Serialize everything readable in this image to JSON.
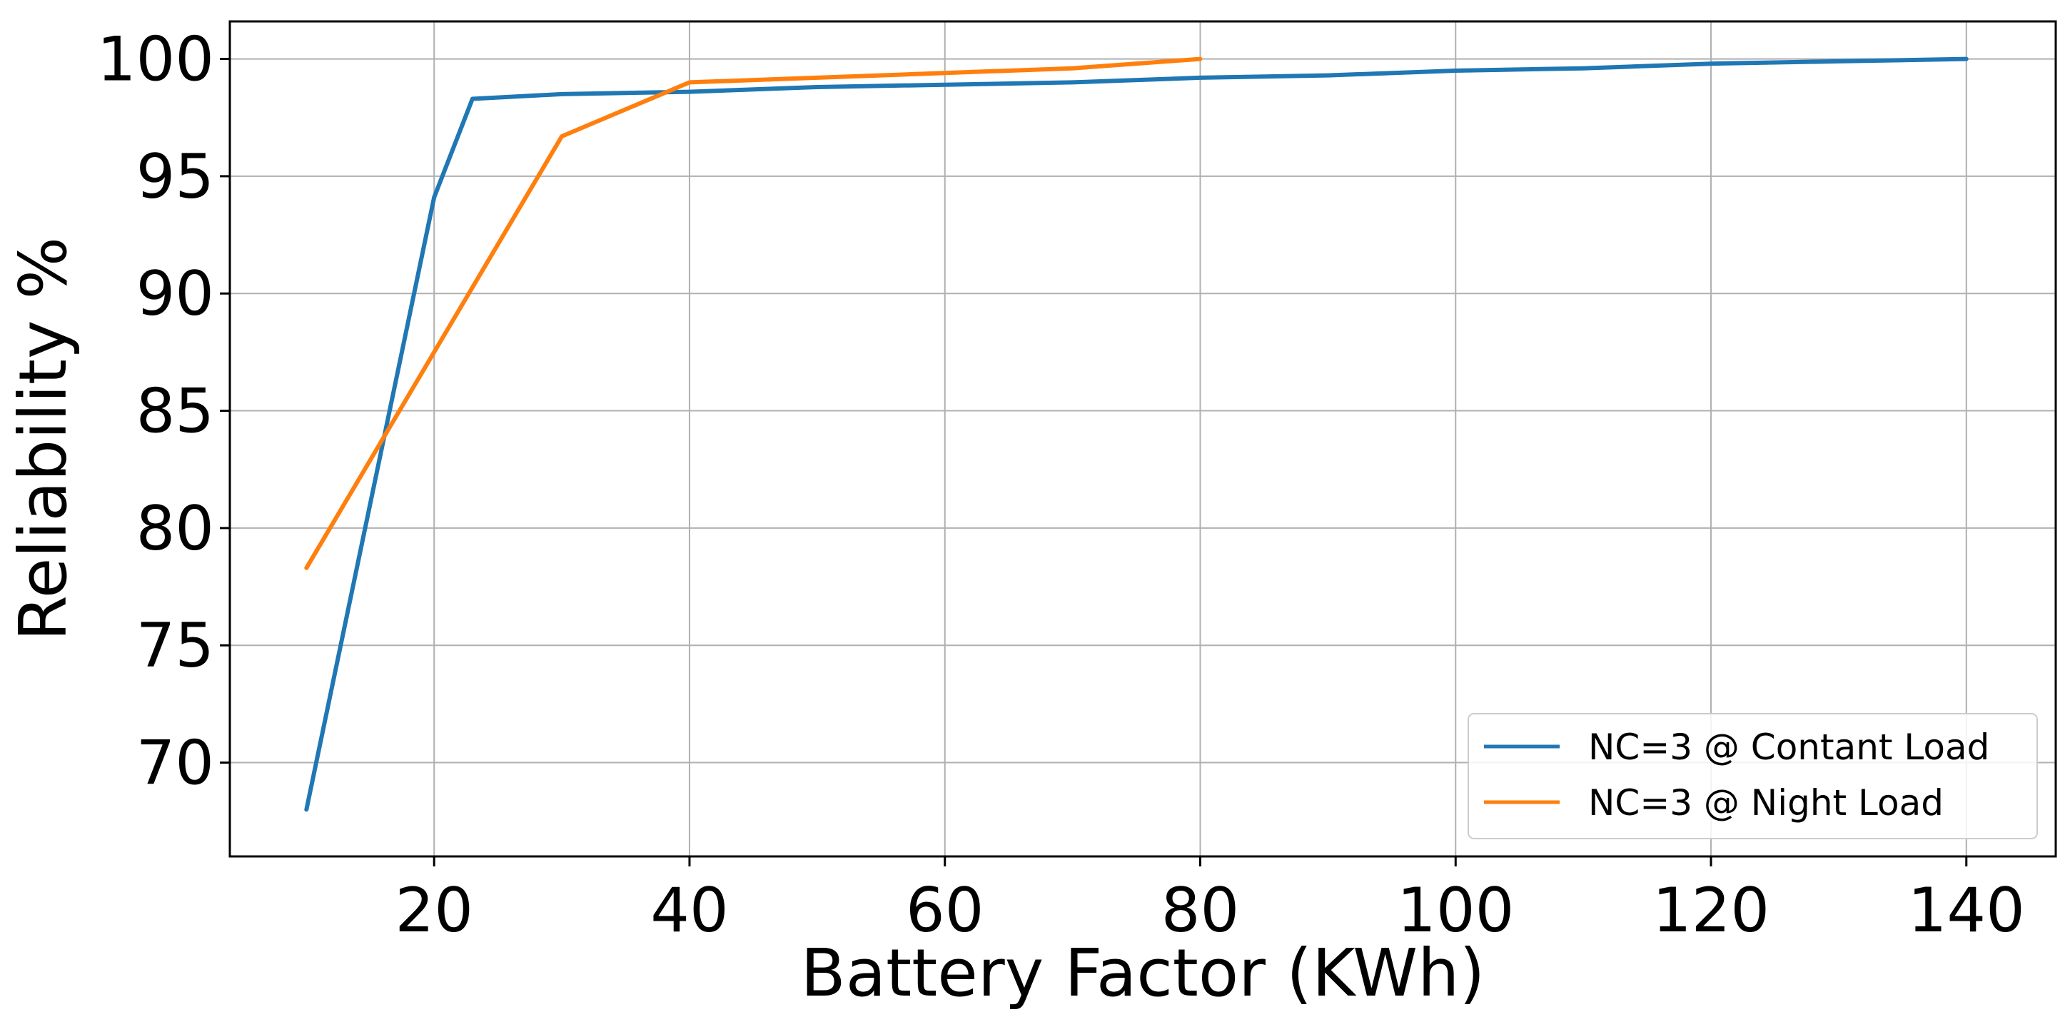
{
  "chart_data": {
    "type": "line",
    "title": "",
    "xlabel": "Battery Factor (KWh)",
    "ylabel": "Reliability %",
    "xlim": [
      4,
      147
    ],
    "ylim": [
      66,
      101.6
    ],
    "xticks": [
      20,
      40,
      60,
      80,
      100,
      120,
      140
    ],
    "yticks": [
      70,
      75,
      80,
      85,
      90,
      95,
      100
    ],
    "grid": true,
    "legend_position": "bottom-right",
    "series": [
      {
        "name": "NC=3 @ Contant Load",
        "color": "#1f77b4",
        "x": [
          10,
          20,
          23,
          30,
          40,
          50,
          60,
          70,
          80,
          90,
          100,
          110,
          120,
          130,
          140
        ],
        "y": [
          68.0,
          94.1,
          98.3,
          98.5,
          98.6,
          98.8,
          98.9,
          99.0,
          99.2,
          99.3,
          99.5,
          99.6,
          99.8,
          99.9,
          100.0
        ]
      },
      {
        "name": "NC=3 @ Night Load",
        "color": "#ff7f0e",
        "x": [
          10,
          20,
          30,
          40,
          50,
          60,
          70,
          80
        ],
        "y": [
          78.3,
          87.5,
          96.7,
          99.0,
          99.2,
          99.4,
          99.6,
          100.0
        ]
      }
    ]
  }
}
